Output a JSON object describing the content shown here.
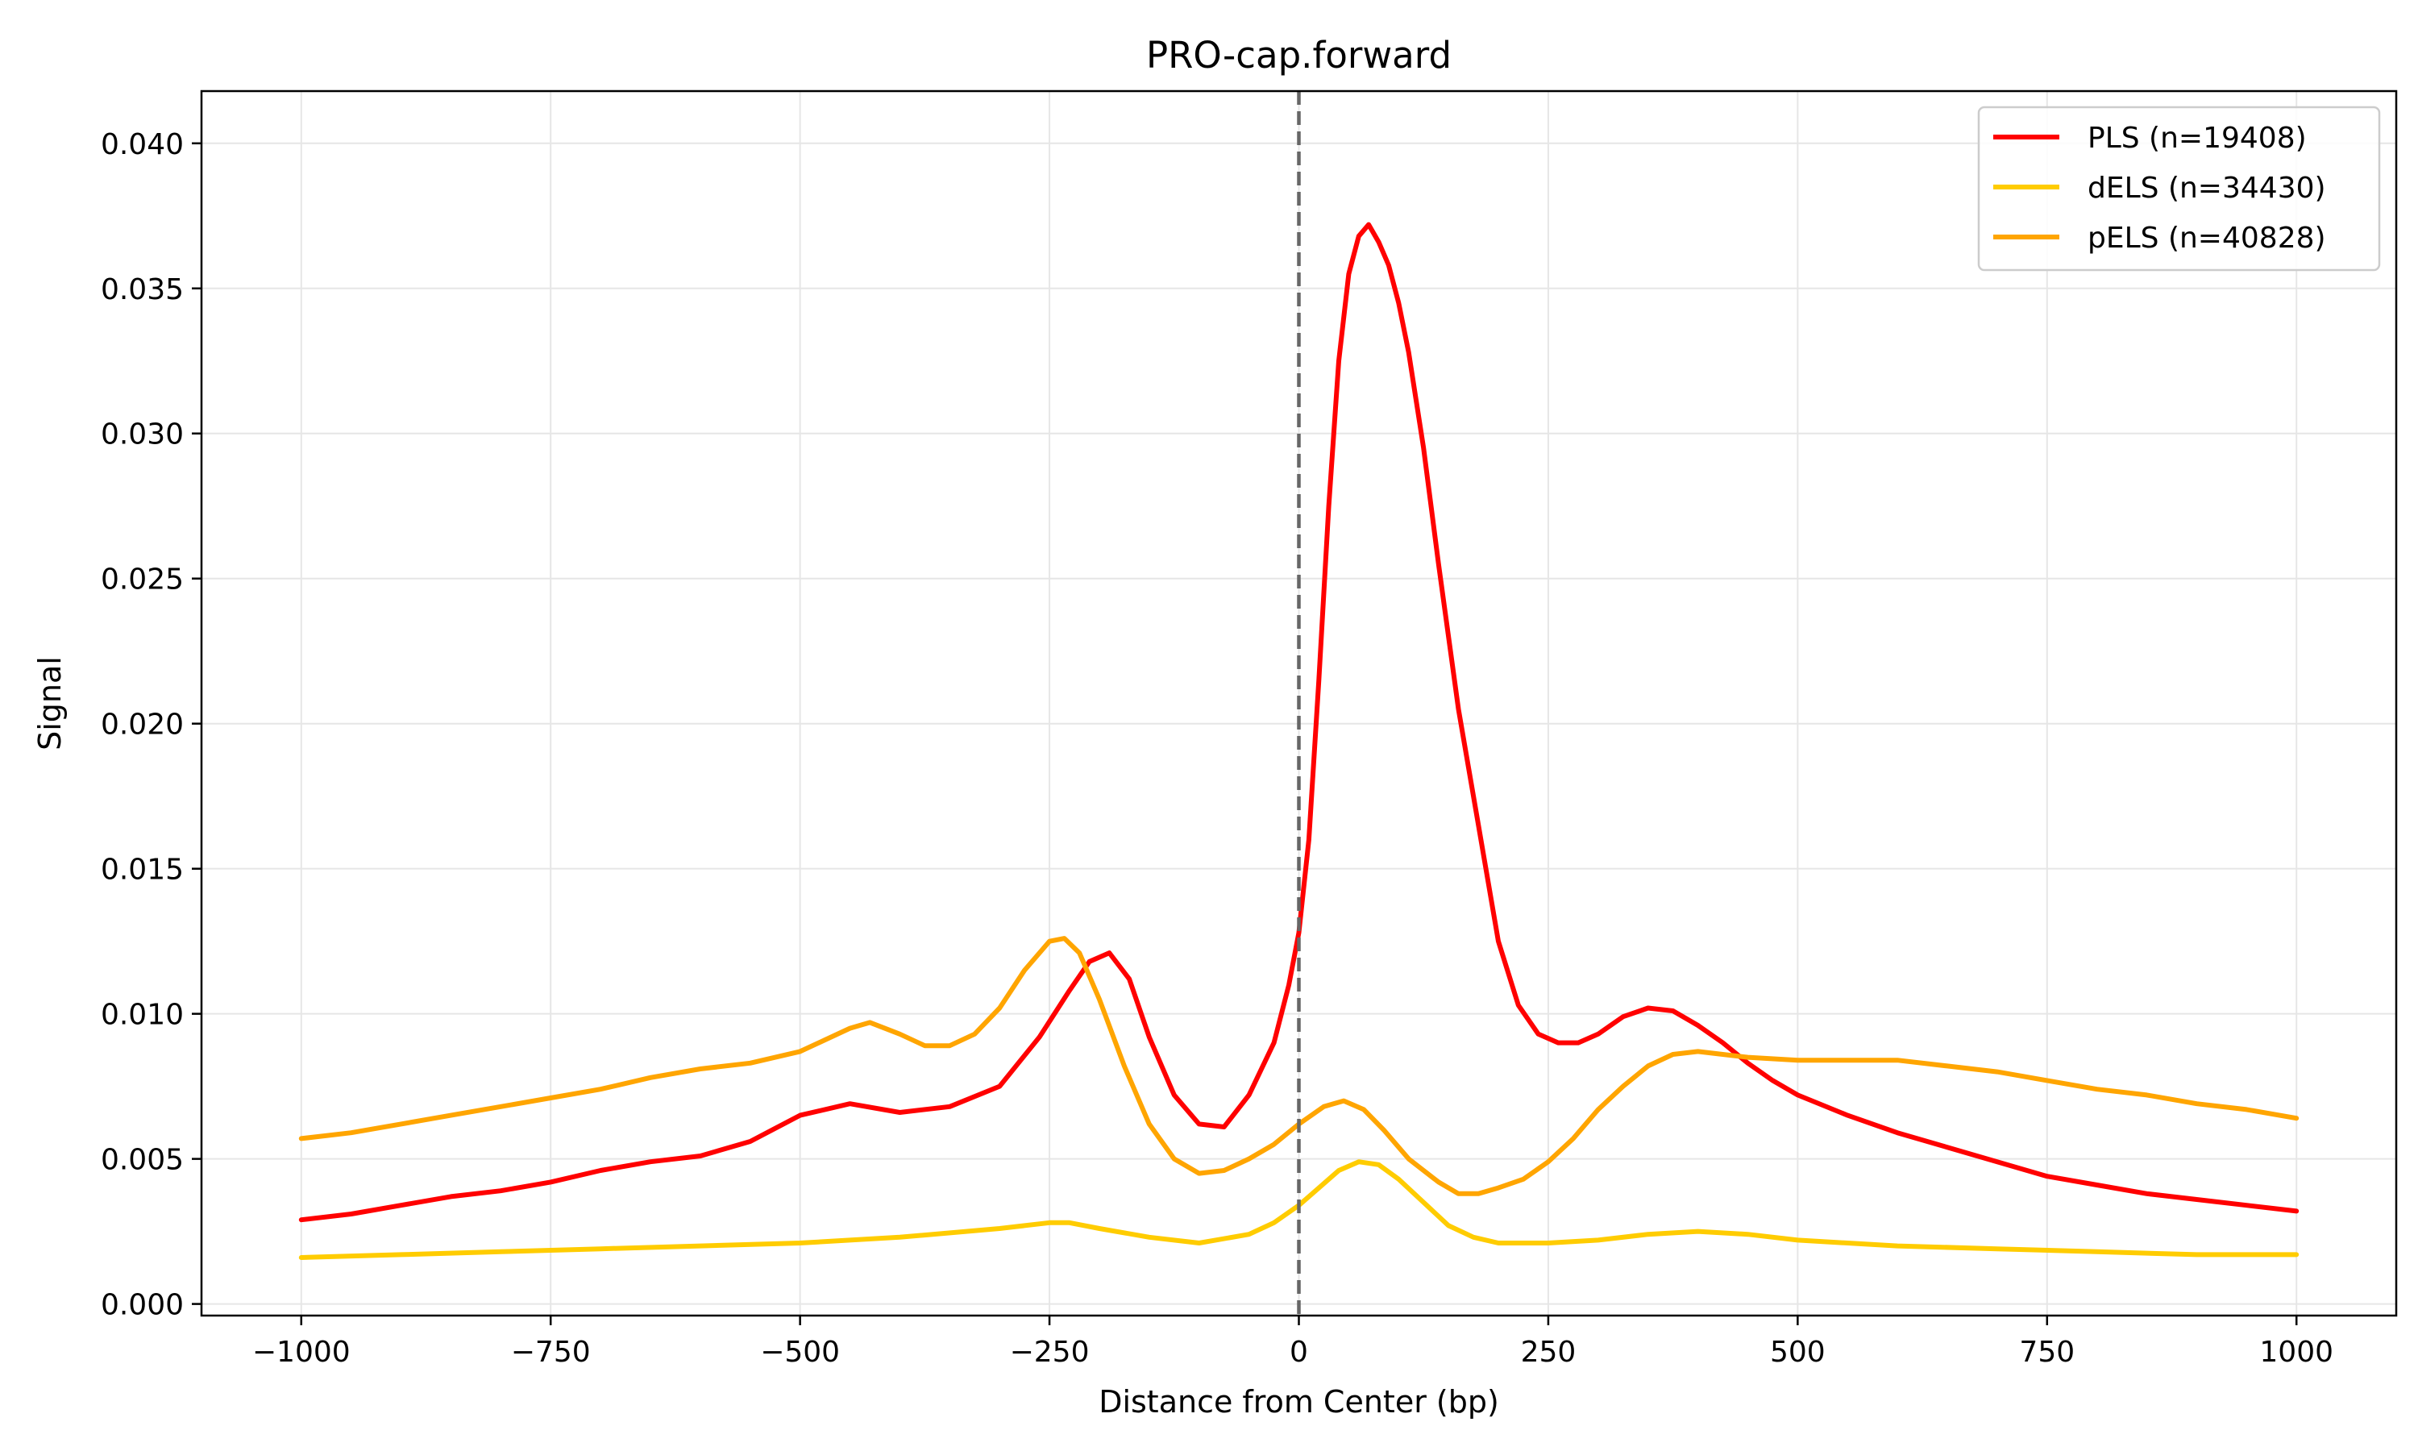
{
  "chart_data": {
    "type": "line",
    "title": "PRO-cap.forward",
    "xlabel": "Distance from Center (bp)",
    "ylabel": "Signal",
    "xlim": [
      -1100,
      1100
    ],
    "ylim": [
      -0.0004,
      0.0418
    ],
    "x_ticks": [
      -1000,
      -750,
      -500,
      -250,
      0,
      250,
      500,
      750,
      1000
    ],
    "x_tick_labels": [
      "−1000",
      "−750",
      "−500",
      "−250",
      "0",
      "250",
      "500",
      "750",
      "1000"
    ],
    "y_ticks": [
      0.0,
      0.005,
      0.01,
      0.015,
      0.02,
      0.025,
      0.03,
      0.035,
      0.04
    ],
    "y_tick_labels": [
      "0.000",
      "0.005",
      "0.010",
      "0.015",
      "0.020",
      "0.025",
      "0.030",
      "0.035",
      "0.040"
    ],
    "grid": true,
    "legend_position": "top-right",
    "reference_line": {
      "x": 0,
      "style": "dashed",
      "color": "#666666"
    },
    "series": [
      {
        "name": "PLS (n=19408)",
        "color": "#ff0000",
        "x": [
          -1000,
          -950,
          -900,
          -850,
          -800,
          -750,
          -700,
          -650,
          -600,
          -550,
          -500,
          -450,
          -400,
          -350,
          -300,
          -260,
          -230,
          -210,
          -190,
          -170,
          -150,
          -125,
          -100,
          -75,
          -50,
          -25,
          -10,
          0,
          10,
          20,
          30,
          40,
          50,
          60,
          70,
          80,
          90,
          100,
          110,
          125,
          140,
          160,
          180,
          200,
          220,
          240,
          260,
          280,
          300,
          325,
          350,
          375,
          400,
          425,
          450,
          475,
          500,
          550,
          600,
          650,
          700,
          750,
          800,
          850,
          900,
          950,
          1000
        ],
        "y": [
          0.0029,
          0.0031,
          0.0034,
          0.0037,
          0.0039,
          0.0042,
          0.0046,
          0.0049,
          0.0051,
          0.0056,
          0.0065,
          0.0069,
          0.0066,
          0.0068,
          0.0075,
          0.0092,
          0.0108,
          0.0118,
          0.0121,
          0.0112,
          0.0092,
          0.0072,
          0.0062,
          0.0061,
          0.0072,
          0.009,
          0.011,
          0.0128,
          0.016,
          0.0215,
          0.0275,
          0.0325,
          0.0355,
          0.0368,
          0.0372,
          0.0366,
          0.0358,
          0.0345,
          0.0328,
          0.0295,
          0.0255,
          0.0205,
          0.0165,
          0.0125,
          0.0103,
          0.0093,
          0.009,
          0.009,
          0.0093,
          0.0099,
          0.0102,
          0.0101,
          0.0096,
          0.009,
          0.0083,
          0.0077,
          0.0072,
          0.0065,
          0.0059,
          0.0054,
          0.0049,
          0.0044,
          0.0041,
          0.0038,
          0.0036,
          0.0034,
          0.0032
        ]
      },
      {
        "name": "dELS (n=34430)",
        "color": "#ffcc00",
        "x": [
          -1000,
          -900,
          -800,
          -700,
          -600,
          -500,
          -400,
          -300,
          -250,
          -230,
          -200,
          -150,
          -100,
          -50,
          -25,
          0,
          20,
          40,
          60,
          80,
          100,
          125,
          150,
          175,
          200,
          250,
          300,
          350,
          400,
          450,
          500,
          600,
          700,
          800,
          900,
          1000
        ],
        "y": [
          0.0016,
          0.0017,
          0.0018,
          0.0019,
          0.002,
          0.0021,
          0.0023,
          0.0026,
          0.0028,
          0.0028,
          0.0026,
          0.0023,
          0.0021,
          0.0024,
          0.0028,
          0.0034,
          0.004,
          0.0046,
          0.0049,
          0.0048,
          0.0043,
          0.0035,
          0.0027,
          0.0023,
          0.0021,
          0.0021,
          0.0022,
          0.0024,
          0.0025,
          0.0024,
          0.0022,
          0.002,
          0.0019,
          0.0018,
          0.0017,
          0.0017
        ]
      },
      {
        "name": "pELS (n=40828)",
        "color": "#ffa500",
        "x": [
          -1000,
          -950,
          -900,
          -850,
          -800,
          -750,
          -700,
          -650,
          -600,
          -550,
          -500,
          -475,
          -450,
          -430,
          -400,
          -375,
          -350,
          -325,
          -300,
          -275,
          -250,
          -235,
          -220,
          -200,
          -175,
          -150,
          -125,
          -100,
          -75,
          -50,
          -25,
          0,
          25,
          45,
          65,
          85,
          110,
          140,
          160,
          180,
          200,
          225,
          250,
          275,
          300,
          325,
          350,
          375,
          400,
          425,
          450,
          500,
          550,
          600,
          650,
          700,
          750,
          800,
          850,
          900,
          950,
          1000
        ],
        "y": [
          0.0057,
          0.0059,
          0.0062,
          0.0065,
          0.0068,
          0.0071,
          0.0074,
          0.0078,
          0.0081,
          0.0083,
          0.0087,
          0.0091,
          0.0095,
          0.0097,
          0.0093,
          0.0089,
          0.0089,
          0.0093,
          0.0102,
          0.0115,
          0.0125,
          0.0126,
          0.0121,
          0.0105,
          0.0082,
          0.0062,
          0.005,
          0.0045,
          0.0046,
          0.005,
          0.0055,
          0.0062,
          0.0068,
          0.007,
          0.0067,
          0.006,
          0.005,
          0.0042,
          0.0038,
          0.0038,
          0.004,
          0.0043,
          0.0049,
          0.0057,
          0.0067,
          0.0075,
          0.0082,
          0.0086,
          0.0087,
          0.0086,
          0.0085,
          0.0084,
          0.0084,
          0.0084,
          0.0082,
          0.008,
          0.0077,
          0.0074,
          0.0072,
          0.0069,
          0.0067,
          0.0064
        ]
      }
    ]
  }
}
